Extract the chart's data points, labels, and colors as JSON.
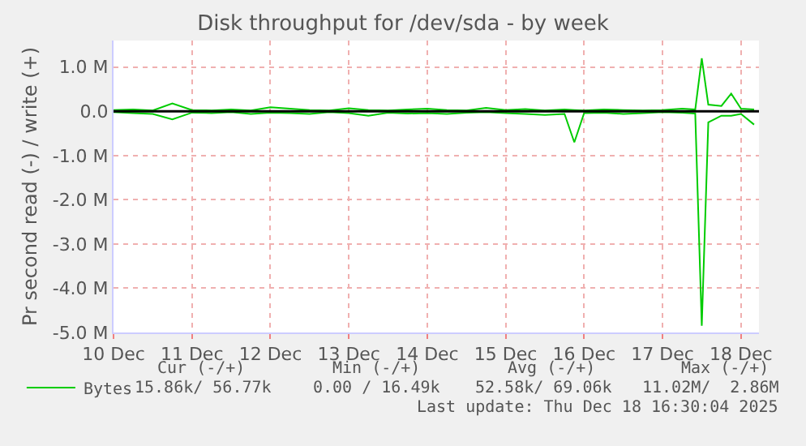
{
  "chart_data": {
    "type": "line",
    "title": "Disk throughput for /dev/sda - by week",
    "ylabel": "Pr second read (-) / write (+)",
    "x": [
      "2025-12-10T00:00",
      "2025-12-10T06:00",
      "2025-12-10T12:00",
      "2025-12-10T18:00",
      "2025-12-11T00:00",
      "2025-12-11T06:00",
      "2025-12-11T12:00",
      "2025-12-11T18:00",
      "2025-12-12T00:00",
      "2025-12-12T06:00",
      "2025-12-12T12:00",
      "2025-12-12T18:00",
      "2025-12-13T00:00",
      "2025-12-13T06:00",
      "2025-12-13T12:00",
      "2025-12-13T18:00",
      "2025-12-14T00:00",
      "2025-12-14T06:00",
      "2025-12-14T12:00",
      "2025-12-14T18:00",
      "2025-12-15T00:00",
      "2025-12-15T06:00",
      "2025-12-15T12:00",
      "2025-12-15T18:00",
      "2025-12-15T21:00",
      "2025-12-16T00:00",
      "2025-12-16T06:00",
      "2025-12-16T12:00",
      "2025-12-16T18:00",
      "2025-12-17T00:00",
      "2025-12-17T06:00",
      "2025-12-17T10:00",
      "2025-12-17T12:00",
      "2025-12-17T14:00",
      "2025-12-17T18:00",
      "2025-12-17T21:00",
      "2025-12-18T00:00",
      "2025-12-18T04:00"
    ],
    "series": [
      {
        "name": "Bytes",
        "color": "#00cc00",
        "values": [
          30000,
          40000,
          20000,
          180000,
          30000,
          20000,
          40000,
          20000,
          90000,
          60000,
          30000,
          20000,
          70000,
          30000,
          20000,
          40000,
          60000,
          30000,
          20000,
          80000,
          30000,
          50000,
          20000,
          40000,
          30000,
          20000,
          40000,
          30000,
          20000,
          30000,
          60000,
          40000,
          1200000,
          150000,
          120000,
          400000,
          60000,
          40000
        ]
      },
      {
        "color": "#00cc00",
        "values": [
          -20000,
          -40000,
          -60000,
          -180000,
          -30000,
          -40000,
          -20000,
          -60000,
          -30000,
          -40000,
          -60000,
          -20000,
          -40000,
          -100000,
          -30000,
          -50000,
          -40000,
          -60000,
          -30000,
          -20000,
          -40000,
          -60000,
          -80000,
          -60000,
          -700000,
          -40000,
          -30000,
          -60000,
          -40000,
          -20000,
          -30000,
          -50000,
          -4850000,
          -250000,
          -100000,
          -100000,
          -60000,
          -300000
        ]
      }
    ],
    "xlim": [
      "2025-12-10T00:00",
      "2025-12-18T05:30"
    ],
    "xticks": [
      {
        "value": "2025-12-10",
        "label": "10 Dec"
      },
      {
        "value": "2025-12-11",
        "label": "11 Dec"
      },
      {
        "value": "2025-12-12",
        "label": "12 Dec"
      },
      {
        "value": "2025-12-13",
        "label": "13 Dec"
      },
      {
        "value": "2025-12-14",
        "label": "14 Dec"
      },
      {
        "value": "2025-12-15",
        "label": "15 Dec"
      },
      {
        "value": "2025-12-16",
        "label": "16 Dec"
      },
      {
        "value": "2025-12-17",
        "label": "17 Dec"
      },
      {
        "value": "2025-12-18",
        "label": "18 Dec"
      }
    ],
    "ylim": [
      -5000000,
      1600000
    ],
    "yticks": [
      {
        "value": 1000000,
        "label": "1.0 M"
      },
      {
        "value": 0,
        "label": "0.0"
      },
      {
        "value": -1000000,
        "label": "-1.0 M"
      },
      {
        "value": -2000000,
        "label": "-2.0 M"
      },
      {
        "value": -3000000,
        "label": "-3.0 M"
      },
      {
        "value": -4000000,
        "label": "-4.0 M"
      },
      {
        "value": -5000000,
        "label": "-5.0 M"
      }
    ],
    "ref_lines": [
      {
        "axis": "y",
        "value": 0,
        "color": "#000000"
      }
    ],
    "grid": true,
    "legend": "bottom left",
    "marker": "none",
    "line_style": "solid",
    "annotations": [
      "Cur (-/+)",
      "Min (-/+)",
      "Avg (-/+)",
      "Max (-/+)",
      "15.86k/ 56.77k",
      "0.00 / 16.49k",
      "52.58k/ 69.06k",
      "11.02M/  2.86M",
      "Last update: Thu Dec 18 16:30:04 2025"
    ]
  }
}
